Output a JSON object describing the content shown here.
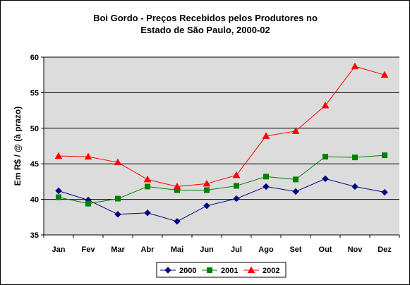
{
  "chart_data": {
    "type": "line",
    "title_lines": [
      "Boi Gordo - Preços Recebidos pelos Produtores no",
      "Estado de São Paulo, 2000-02"
    ],
    "xlabel": "",
    "ylabel": "Em R$ / @ (à prazo)",
    "ylim": [
      35,
      60
    ],
    "yticks": [
      "35",
      "40",
      "45",
      "50",
      "55",
      "60"
    ],
    "grid": true,
    "legend_position": "bottom",
    "categories": [
      "Jan",
      "Fev",
      "Mar",
      "Abr",
      "Mai",
      "Jun",
      "Jul",
      "Ago",
      "Set",
      "Out",
      "Nov",
      "Dez"
    ],
    "series": [
      {
        "name": "2000",
        "color": "#000080",
        "marker": "diamond",
        "values": [
          41.2,
          39.9,
          37.9,
          38.1,
          36.9,
          39.1,
          40.1,
          41.8,
          41.1,
          42.9,
          41.8,
          41.0
        ]
      },
      {
        "name": "2001",
        "color": "#008000",
        "marker": "square",
        "values": [
          40.3,
          39.4,
          40.1,
          41.8,
          41.3,
          41.3,
          41.9,
          43.2,
          42.8,
          46.0,
          45.9,
          46.2
        ]
      },
      {
        "name": "2002",
        "color": "#ff0000",
        "marker": "triangle",
        "values": [
          46.1,
          46.0,
          45.2,
          42.8,
          41.8,
          42.2,
          43.4,
          48.9,
          49.6,
          53.2,
          58.7,
          57.5
        ]
      }
    ],
    "plot_background": "#dcdcdc"
  }
}
